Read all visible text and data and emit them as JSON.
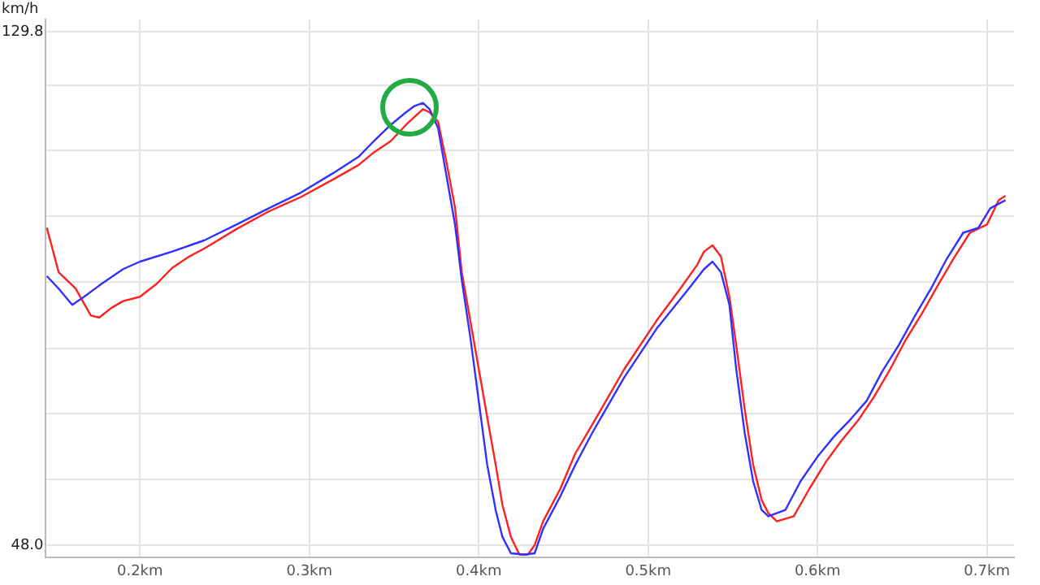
{
  "chart_data": {
    "type": "line",
    "ylabel": "km/h",
    "xlim": [
      0.144,
      0.716
    ],
    "xticks": [
      {
        "value": 0.2,
        "label": "0.2km"
      },
      {
        "value": 0.3,
        "label": "0.3km"
      },
      {
        "value": 0.4,
        "label": "0.4km"
      },
      {
        "value": 0.5,
        "label": "0.5km"
      },
      {
        "value": 0.6,
        "label": "0.6km"
      },
      {
        "value": 0.7,
        "label": "0.7km"
      }
    ],
    "ylim": [
      46.0,
      131.8
    ],
    "yticks": [
      {
        "value": 48.0,
        "label": "48.0"
      },
      {
        "value": 58.5,
        "label": null
      },
      {
        "value": 69.0,
        "label": null
      },
      {
        "value": 79.4,
        "label": null
      },
      {
        "value": 89.9,
        "label": null
      },
      {
        "value": 100.4,
        "label": null
      },
      {
        "value": 110.9,
        "label": null
      },
      {
        "value": 121.3,
        "label": null
      },
      {
        "value": 129.8,
        "label": "129.8"
      }
    ],
    "grid": true,
    "legend": false,
    "marker": "none",
    "line_style": "solid",
    "series": [
      {
        "color": "#3030ff",
        "x": [
          0.145,
          0.152,
          0.16,
          0.167,
          0.176,
          0.19,
          0.2,
          0.219,
          0.238,
          0.257,
          0.276,
          0.295,
          0.314,
          0.329,
          0.338,
          0.348,
          0.357,
          0.362,
          0.367,
          0.371,
          0.376,
          0.381,
          0.386,
          0.39,
          0.395,
          0.4,
          0.405,
          0.41,
          0.414,
          0.419,
          0.427,
          0.433,
          0.438,
          0.448,
          0.457,
          0.467,
          0.486,
          0.505,
          0.524,
          0.533,
          0.538,
          0.543,
          0.548,
          0.552,
          0.557,
          0.562,
          0.567,
          0.571,
          0.581,
          0.59,
          0.6,
          0.61,
          0.619,
          0.629,
          0.638,
          0.648,
          0.657,
          0.667,
          0.676,
          0.686,
          0.695,
          0.702,
          0.711
        ],
        "values": [
          90.9,
          88.9,
          86.3,
          87.6,
          89.4,
          92.0,
          93.2,
          94.8,
          96.6,
          99.1,
          101.7,
          104.2,
          107.3,
          109.9,
          112.4,
          115.0,
          117.0,
          118.0,
          118.5,
          117.5,
          114.5,
          106.8,
          99.1,
          90.2,
          81.2,
          71.0,
          60.8,
          53.6,
          49.3,
          46.7,
          46.5,
          46.7,
          50.6,
          55.7,
          60.8,
          65.9,
          74.8,
          82.5,
          88.9,
          92.0,
          93.2,
          91.5,
          86.3,
          76.1,
          65.9,
          58.2,
          53.6,
          52.6,
          53.6,
          58.2,
          62.1,
          65.4,
          67.9,
          71.0,
          75.6,
          79.9,
          84.3,
          88.9,
          93.5,
          97.8,
          98.6,
          101.7,
          103.0
        ]
      },
      {
        "color": "#ff2020",
        "x": [
          0.145,
          0.152,
          0.162,
          0.171,
          0.176,
          0.183,
          0.19,
          0.2,
          0.21,
          0.219,
          0.229,
          0.238,
          0.257,
          0.276,
          0.295,
          0.314,
          0.329,
          0.338,
          0.348,
          0.357,
          0.367,
          0.371,
          0.376,
          0.381,
          0.386,
          0.39,
          0.395,
          0.4,
          0.405,
          0.41,
          0.414,
          0.419,
          0.424,
          0.429,
          0.433,
          0.438,
          0.448,
          0.457,
          0.467,
          0.486,
          0.505,
          0.519,
          0.529,
          0.533,
          0.538,
          0.543,
          0.548,
          0.552,
          0.557,
          0.562,
          0.567,
          0.571,
          0.576,
          0.586,
          0.595,
          0.605,
          0.614,
          0.624,
          0.633,
          0.643,
          0.652,
          0.662,
          0.671,
          0.681,
          0.69,
          0.7,
          0.707,
          0.711
        ],
        "values": [
          98.6,
          91.5,
          88.9,
          84.6,
          84.3,
          85.8,
          86.9,
          87.6,
          89.7,
          92.2,
          94.0,
          95.3,
          98.4,
          101.2,
          103.5,
          106.3,
          108.6,
          110.6,
          112.4,
          115.0,
          117.5,
          117.0,
          115.5,
          109.0,
          101.8,
          91.5,
          83.8,
          76.1,
          68.4,
          60.8,
          54.4,
          49.3,
          46.5,
          46.5,
          48.0,
          51.8,
          56.9,
          62.6,
          67.2,
          76.1,
          83.8,
          88.9,
          92.7,
          94.8,
          95.8,
          94.0,
          87.6,
          79.9,
          69.7,
          60.8,
          55.2,
          53.1,
          51.8,
          52.6,
          56.9,
          61.3,
          64.6,
          67.9,
          71.5,
          76.1,
          80.7,
          85.1,
          89.4,
          94.0,
          97.8,
          99.1,
          103.0,
          103.7
        ]
      }
    ]
  }
}
